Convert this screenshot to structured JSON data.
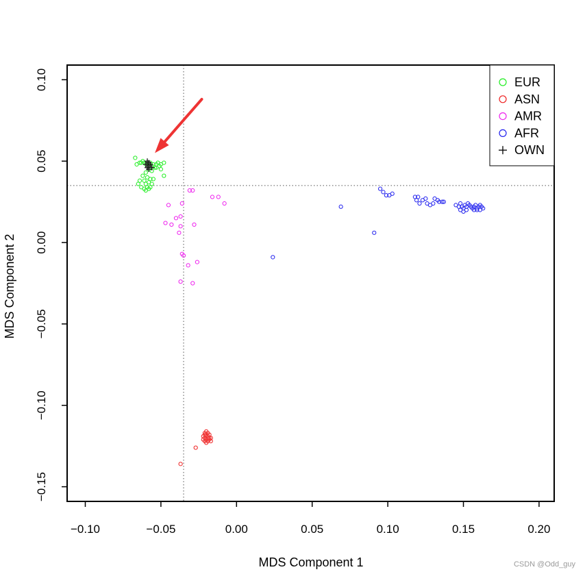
{
  "chart_data": {
    "type": "scatter",
    "title": "",
    "xlabel": "MDS Component 1",
    "ylabel": "MDS Component 2",
    "xlim": [
      -0.112,
      0.21
    ],
    "ylim": [
      -0.159,
      0.109
    ],
    "x_ticks": [
      -0.1,
      -0.05,
      0.0,
      0.05,
      0.1,
      0.15,
      0.2
    ],
    "x_tick_labels": [
      "−0.10",
      "−0.05",
      "0.00",
      "0.05",
      "0.10",
      "0.15",
      "0.20"
    ],
    "y_ticks": [
      -0.15,
      -0.1,
      -0.05,
      0.0,
      0.05,
      0.1
    ],
    "y_tick_labels": [
      "−0.15",
      "−0.10",
      "−0.05",
      "0.00",
      "0.05",
      "0.10"
    ],
    "grid": false,
    "reference_lines": {
      "vertical_x": -0.035,
      "horizontal_y": 0.035,
      "style": "dotted"
    },
    "legend_position": "top-right",
    "annotation_arrow": {
      "from": [
        -0.023,
        0.088
      ],
      "to": [
        -0.054,
        0.055
      ],
      "color": "#ee3333"
    },
    "series": [
      {
        "name": "EUR",
        "color": "#22ee22",
        "marker": "circle",
        "points": [
          [
            -0.067,
            0.052
          ],
          [
            -0.066,
            0.048
          ],
          [
            -0.064,
            0.049
          ],
          [
            -0.063,
            0.049
          ],
          [
            -0.062,
            0.05
          ],
          [
            -0.061,
            0.049
          ],
          [
            -0.06,
            0.048
          ],
          [
            -0.059,
            0.049
          ],
          [
            -0.058,
            0.048
          ],
          [
            -0.057,
            0.049
          ],
          [
            -0.056,
            0.047
          ],
          [
            -0.055,
            0.048
          ],
          [
            -0.054,
            0.046
          ],
          [
            -0.053,
            0.048
          ],
          [
            -0.052,
            0.049
          ],
          [
            -0.051,
            0.047
          ],
          [
            -0.05,
            0.048
          ],
          [
            -0.048,
            0.049
          ],
          [
            -0.058,
            0.045
          ],
          [
            -0.056,
            0.044
          ],
          [
            -0.053,
            0.046
          ],
          [
            -0.05,
            0.045
          ],
          [
            -0.06,
            0.043
          ],
          [
            -0.062,
            0.041
          ],
          [
            -0.061,
            0.038
          ],
          [
            -0.059,
            0.04
          ],
          [
            -0.057,
            0.039
          ],
          [
            -0.058,
            0.037
          ],
          [
            -0.06,
            0.036
          ],
          [
            -0.059,
            0.034
          ],
          [
            -0.058,
            0.033
          ],
          [
            -0.061,
            0.033
          ],
          [
            -0.063,
            0.034
          ],
          [
            -0.065,
            0.036
          ],
          [
            -0.064,
            0.038
          ],
          [
            -0.06,
            0.032
          ],
          [
            -0.056,
            0.036
          ],
          [
            -0.055,
            0.039
          ],
          [
            -0.048,
            0.041
          ],
          [
            -0.057,
            0.034
          ]
        ]
      },
      {
        "name": "ASN",
        "color": "#ee2222",
        "marker": "circle",
        "points": [
          [
            -0.021,
            -0.117
          ],
          [
            -0.02,
            -0.118
          ],
          [
            -0.019,
            -0.119
          ],
          [
            -0.021,
            -0.12
          ],
          [
            -0.02,
            -0.121
          ],
          [
            -0.019,
            -0.122
          ],
          [
            -0.018,
            -0.12
          ],
          [
            -0.02,
            -0.119
          ],
          [
            -0.021,
            -0.122
          ],
          [
            -0.018,
            -0.121
          ],
          [
            -0.017,
            -0.12
          ],
          [
            -0.019,
            -0.117
          ],
          [
            -0.022,
            -0.121
          ],
          [
            -0.02,
            -0.123
          ],
          [
            -0.018,
            -0.118
          ],
          [
            -0.019,
            -0.12
          ],
          [
            -0.021,
            -0.118
          ],
          [
            -0.017,
            -0.122
          ],
          [
            -0.02,
            -0.116
          ],
          [
            -0.022,
            -0.119
          ],
          [
            -0.027,
            -0.126
          ],
          [
            -0.037,
            -0.136
          ]
        ]
      },
      {
        "name": "AMR",
        "color": "#ee22ee",
        "marker": "circle",
        "points": [
          [
            -0.031,
            0.032
          ],
          [
            -0.029,
            0.032
          ],
          [
            -0.016,
            0.028
          ],
          [
            -0.012,
            0.028
          ],
          [
            -0.008,
            0.024
          ],
          [
            -0.045,
            0.023
          ],
          [
            -0.036,
            0.024
          ],
          [
            -0.037,
            0.016
          ],
          [
            -0.04,
            0.015
          ],
          [
            -0.047,
            0.012
          ],
          [
            -0.043,
            0.011
          ],
          [
            -0.037,
            0.01
          ],
          [
            -0.028,
            0.011
          ],
          [
            -0.038,
            0.006
          ],
          [
            -0.036,
            -0.007
          ],
          [
            -0.035,
            -0.008
          ],
          [
            -0.032,
            -0.014
          ],
          [
            -0.026,
            -0.012
          ],
          [
            -0.037,
            -0.024
          ],
          [
            -0.029,
            -0.025
          ]
        ]
      },
      {
        "name": "AFR",
        "color": "#2222ee",
        "marker": "circle",
        "points": [
          [
            0.095,
            0.033
          ],
          [
            0.097,
            0.031
          ],
          [
            0.099,
            0.029
          ],
          [
            0.101,
            0.029
          ],
          [
            0.103,
            0.03
          ],
          [
            0.069,
            0.022
          ],
          [
            0.091,
            0.006
          ],
          [
            0.024,
            -0.009
          ],
          [
            0.118,
            0.028
          ],
          [
            0.119,
            0.026
          ],
          [
            0.12,
            0.028
          ],
          [
            0.121,
            0.024
          ],
          [
            0.123,
            0.026
          ],
          [
            0.125,
            0.027
          ],
          [
            0.126,
            0.024
          ],
          [
            0.128,
            0.023
          ],
          [
            0.13,
            0.024
          ],
          [
            0.131,
            0.027
          ],
          [
            0.133,
            0.026
          ],
          [
            0.134,
            0.025
          ],
          [
            0.136,
            0.025
          ],
          [
            0.137,
            0.025
          ],
          [
            0.145,
            0.023
          ],
          [
            0.147,
            0.022
          ],
          [
            0.148,
            0.024
          ],
          [
            0.149,
            0.022
          ],
          [
            0.15,
            0.021
          ],
          [
            0.151,
            0.023
          ],
          [
            0.152,
            0.022
          ],
          [
            0.153,
            0.024
          ],
          [
            0.154,
            0.023
          ],
          [
            0.155,
            0.022
          ],
          [
            0.156,
            0.021
          ],
          [
            0.157,
            0.022
          ],
          [
            0.158,
            0.023
          ],
          [
            0.159,
            0.021
          ],
          [
            0.16,
            0.022
          ],
          [
            0.161,
            0.023
          ],
          [
            0.162,
            0.022
          ],
          [
            0.148,
            0.02
          ],
          [
            0.15,
            0.019
          ],
          [
            0.152,
            0.02
          ],
          [
            0.157,
            0.02
          ],
          [
            0.159,
            0.02
          ],
          [
            0.161,
            0.02
          ],
          [
            0.163,
            0.021
          ]
        ]
      },
      {
        "name": "OWN",
        "color": "#000000",
        "marker": "plus",
        "points": [
          [
            -0.059,
            0.05
          ],
          [
            -0.058,
            0.049
          ],
          [
            -0.058,
            0.047
          ],
          [
            -0.057,
            0.048
          ],
          [
            -0.059,
            0.046
          ],
          [
            -0.058,
            0.045
          ],
          [
            -0.056,
            0.046
          ],
          [
            -0.06,
            0.048
          ]
        ]
      }
    ]
  },
  "watermark": "CSDN @Odd_guy"
}
